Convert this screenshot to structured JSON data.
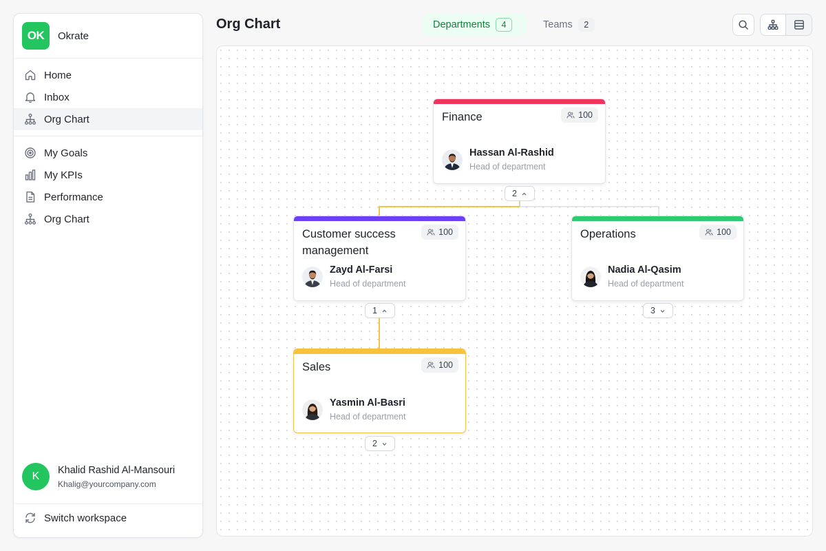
{
  "app": {
    "name": "Okrate",
    "logo_text": "OK",
    "brand_color": "#22c55e"
  },
  "sidebar": {
    "nav_primary": [
      {
        "label": "Home",
        "icon": "home-icon"
      },
      {
        "label": "Inbox",
        "icon": "bell-icon"
      },
      {
        "label": "Org Chart",
        "icon": "org-chart-icon",
        "active": true
      }
    ],
    "nav_secondary": [
      {
        "label": "My Goals",
        "icon": "target-icon"
      },
      {
        "label": "My KPIs",
        "icon": "bar-chart-icon"
      },
      {
        "label": "Performance",
        "icon": "document-icon"
      },
      {
        "label": "Org Chart",
        "icon": "org-chart-icon"
      }
    ],
    "user": {
      "initial": "K",
      "name": "Khalid Rashid Al-Mansouri",
      "email": "Khalig@yourcompany.com"
    },
    "switch_workspace": "Switch workspace"
  },
  "header": {
    "title": "Org Chart",
    "tabs": [
      {
        "label": "Departments",
        "count": "4",
        "active": true
      },
      {
        "label": "Teams",
        "count": "2",
        "active": false
      }
    ],
    "actions": [
      "search-icon",
      "tree-view-icon",
      "list-view-icon"
    ]
  },
  "org": {
    "departments": [
      {
        "id": "finance",
        "name": "Finance",
        "members": "100",
        "head": "Hassan Al-Rashid",
        "role": "Head of department",
        "color": "#f0355c",
        "children_count": "2",
        "expanded": true
      },
      {
        "id": "csm",
        "name": "Customer success management",
        "members": "100",
        "head": "Zayd Al-Farsi",
        "role": "Head of department",
        "color": "#6d3ff5",
        "children_count": "1",
        "expanded": true
      },
      {
        "id": "operations",
        "name": "Operations",
        "members": "100",
        "head": "Nadia Al-Qasim",
        "role": "Head of department",
        "color": "#2ecc71",
        "children_count": "3",
        "expanded": false
      },
      {
        "id": "sales",
        "name": "Sales",
        "members": "100",
        "head": "Yasmin Al-Basri",
        "role": "Head of department",
        "color": "#f9c23c",
        "children_count": "2",
        "expanded": false,
        "selected": true
      }
    ],
    "connector_active_color": "#f5c244",
    "connector_color": "#d6d8dd"
  }
}
